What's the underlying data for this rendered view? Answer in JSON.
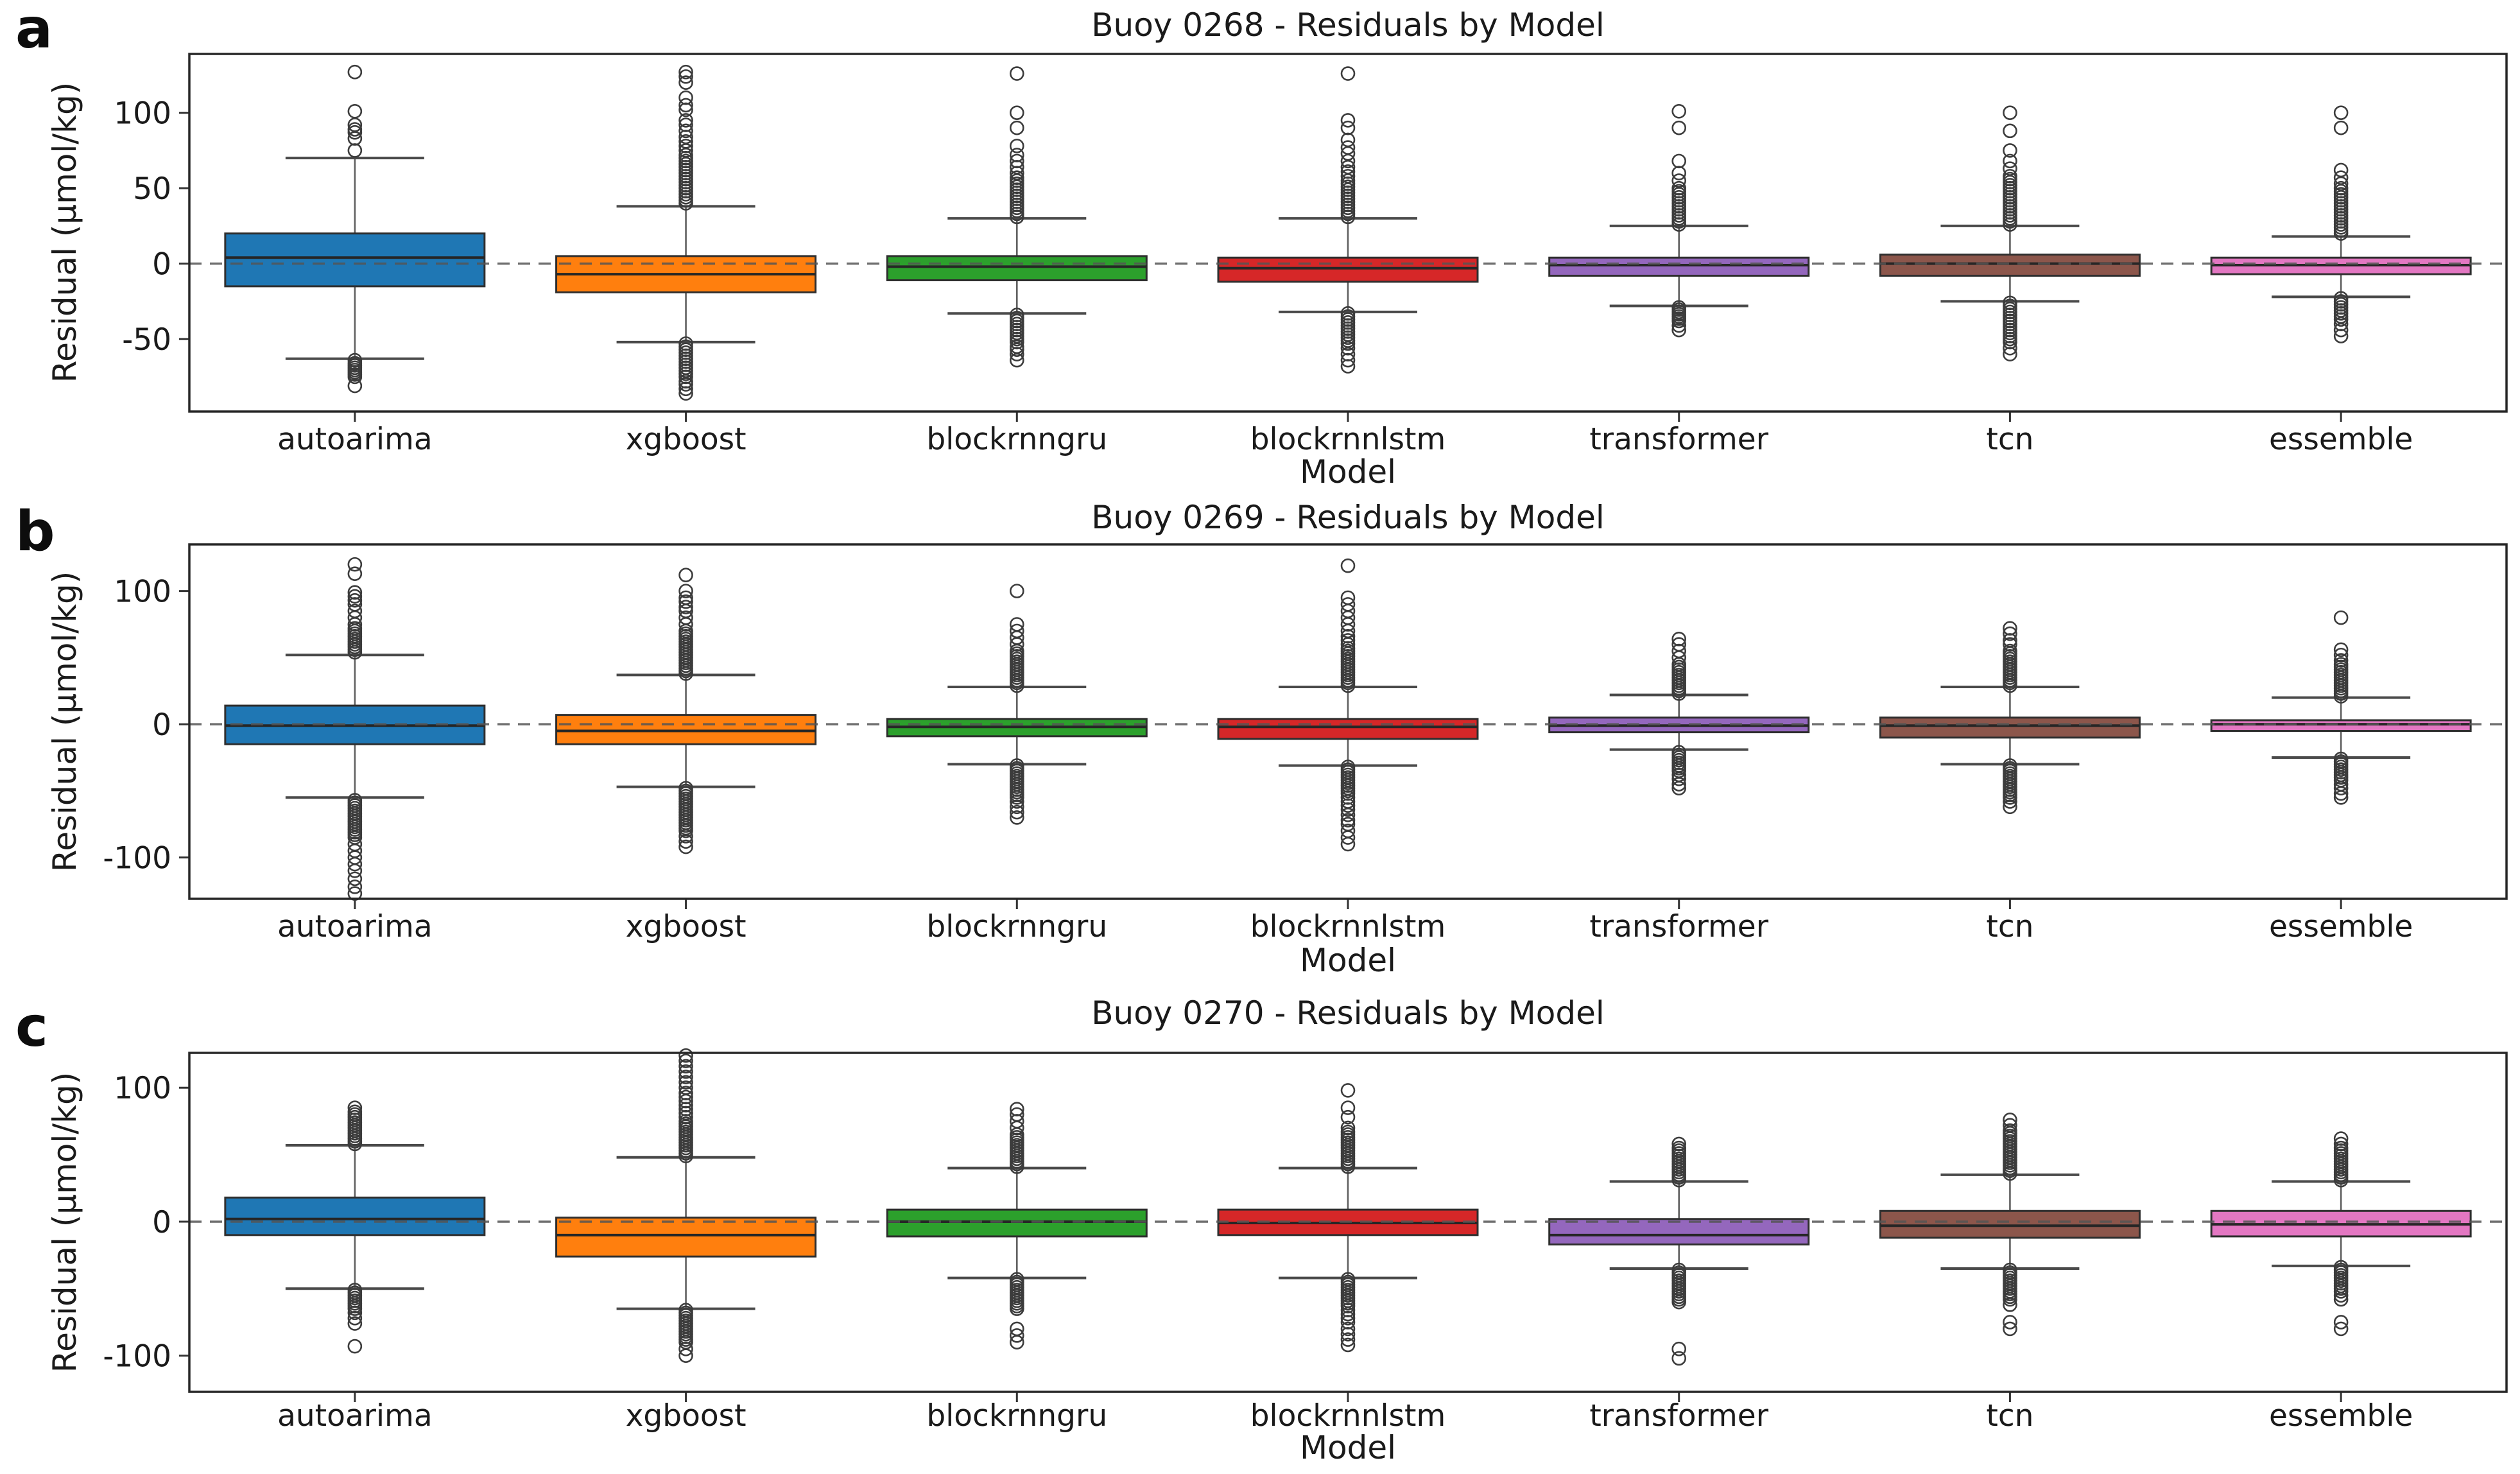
{
  "figure": {
    "background": "#ffffff"
  },
  "chart_data": [
    {
      "type": "box",
      "panel_label": "a",
      "title": "Buoy 0268 - Residuals by Model",
      "xlabel": "Model",
      "ylabel": "Residual (μmol/kg)",
      "yticks": [
        100,
        50,
        0,
        -50
      ],
      "ylim": [
        -98,
        139
      ],
      "zero_line": 0,
      "grid": false,
      "legend": "none",
      "categories": [
        "autoarima",
        "xgboost",
        "blockrnngru",
        "blockrnnlstm",
        "transformer",
        "tcn",
        "essemble"
      ],
      "series": [
        {
          "model": "autoarima",
          "color": "#1f77b4",
          "whisker_low": -63,
          "q1": -15,
          "median": 4,
          "q3": 20,
          "whisker_high": 70,
          "outliers_high": [
            75,
            83,
            87,
            89,
            92,
            101,
            127
          ],
          "outliers_low": [
            -64,
            -66,
            -67.5,
            -69,
            -70.5,
            -72,
            -73.5,
            -75,
            -81
          ]
        },
        {
          "model": "xgboost",
          "color": "#ff7f0e",
          "whisker_low": -52,
          "q1": -19,
          "median": -7,
          "q3": 5,
          "whisker_high": 38,
          "outliers_high": [
            40,
            42,
            44,
            46,
            48,
            50,
            52,
            54,
            56,
            58,
            60,
            62,
            64,
            66,
            68,
            70,
            72,
            75,
            78,
            81,
            84,
            88,
            92,
            95,
            102,
            105,
            110,
            120,
            124,
            127
          ],
          "outliers_low": [
            -53,
            -55,
            -57,
            -59,
            -61,
            -63,
            -65,
            -67,
            -69,
            -71,
            -73,
            -75,
            -78,
            -80,
            -83,
            -86
          ]
        },
        {
          "model": "blockrnngru",
          "color": "#2ca02c",
          "whisker_low": -33,
          "q1": -11,
          "median": -2,
          "q3": 5,
          "whisker_high": 30,
          "outliers_high": [
            31,
            33,
            35,
            37,
            39,
            41,
            43,
            45,
            47,
            49,
            51,
            53,
            55,
            57,
            60,
            64,
            68,
            72,
            78,
            90,
            100,
            126
          ],
          "outliers_low": [
            -34,
            -36,
            -38,
            -40,
            -42,
            -44,
            -46,
            -48,
            -50,
            -52,
            -55,
            -57,
            -60,
            -64
          ]
        },
        {
          "model": "blockrnnlstm",
          "color": "#d62728",
          "whisker_low": -32,
          "q1": -12,
          "median": -3,
          "q3": 4,
          "whisker_high": 30,
          "outliers_high": [
            31,
            33,
            35,
            37,
            39,
            41,
            43,
            45,
            47,
            49,
            51,
            53,
            55,
            58,
            61,
            64,
            68,
            73,
            77,
            82,
            90,
            95,
            126
          ],
          "outliers_low": [
            -33,
            -35,
            -37,
            -39,
            -41,
            -43,
            -45,
            -47,
            -49,
            -51,
            -53,
            -56,
            -60,
            -64,
            -68
          ]
        },
        {
          "model": "transformer",
          "color": "#9467bd",
          "whisker_low": -28,
          "q1": -8,
          "median": -1,
          "q3": 4,
          "whisker_high": 25,
          "outliers_high": [
            26,
            28,
            30,
            32,
            34,
            36,
            38,
            40,
            42,
            44,
            46,
            48,
            50,
            55,
            60,
            68,
            90,
            101
          ],
          "outliers_low": [
            -29,
            -30.5,
            -32,
            -33.5,
            -35,
            -36.5,
            -38,
            -41,
            -44
          ]
        },
        {
          "model": "tcn",
          "color": "#8c564b",
          "whisker_low": -25,
          "q1": -8,
          "median": 0,
          "q3": 6,
          "whisker_high": 25,
          "outliers_high": [
            26,
            28,
            30,
            32,
            34,
            36,
            38,
            40,
            42,
            44,
            46,
            48,
            50,
            52,
            54,
            56,
            58,
            63,
            68,
            75,
            88,
            100
          ],
          "outliers_low": [
            -26,
            -28,
            -30,
            -32,
            -34,
            -36,
            -38,
            -40,
            -42,
            -44,
            -46,
            -48,
            -50,
            -52,
            -56,
            -60
          ]
        },
        {
          "model": "essemble",
          "color": "#e377c2",
          "whisker_low": -22,
          "q1": -7,
          "median": -1,
          "q3": 4,
          "whisker_high": 18,
          "outliers_high": [
            20,
            22,
            24,
            26,
            28,
            30,
            32,
            34,
            36,
            38,
            40,
            42,
            44,
            46,
            48,
            50,
            53,
            57,
            62,
            90,
            100
          ],
          "outliers_low": [
            -23,
            -25,
            -27,
            -29,
            -31,
            -33,
            -35,
            -37,
            -40,
            -44,
            -48
          ]
        }
      ]
    },
    {
      "type": "box",
      "panel_label": "b",
      "title": "Buoy 0269 - Residuals by Model",
      "xlabel": "Model",
      "ylabel": "Residual (μmol/kg)",
      "yticks": [
        100,
        0,
        -100
      ],
      "ylim": [
        -131,
        135
      ],
      "zero_line": 0,
      "grid": false,
      "legend": "none",
      "categories": [
        "autoarima",
        "xgboost",
        "blockrnngru",
        "blockrnnlstm",
        "transformer",
        "tcn",
        "essemble"
      ],
      "series": [
        {
          "model": "autoarima",
          "color": "#1f77b4",
          "whisker_low": -55,
          "q1": -15,
          "median": -1,
          "q3": 14,
          "whisker_high": 52,
          "outliers_high": [
            54,
            56,
            58,
            60,
            62,
            64,
            66,
            68,
            70,
            72,
            75,
            80,
            85,
            90,
            93,
            96,
            99,
            113,
            120
          ],
          "outliers_low": [
            -57,
            -59,
            -61,
            -63,
            -65,
            -67,
            -69,
            -71,
            -73,
            -75,
            -77,
            -79,
            -81,
            -83,
            -85,
            -90,
            -95,
            -100,
            -105,
            -110,
            -116,
            -122,
            -127
          ]
        },
        {
          "model": "xgboost",
          "color": "#ff7f0e",
          "whisker_low": -47,
          "q1": -15,
          "median": -5,
          "q3": 7,
          "whisker_high": 37,
          "outliers_high": [
            38,
            40,
            42,
            44,
            46,
            48,
            50,
            52,
            54,
            56,
            58,
            60,
            62,
            64,
            66,
            68,
            70,
            75,
            80,
            85,
            88,
            92,
            95,
            100,
            112
          ],
          "outliers_low": [
            -48,
            -50,
            -52,
            -54,
            -56,
            -58,
            -60,
            -62,
            -64,
            -66,
            -68,
            -70,
            -72,
            -74,
            -76,
            -78,
            -80,
            -84,
            -88,
            -92
          ]
        },
        {
          "model": "blockrnngru",
          "color": "#2ca02c",
          "whisker_low": -30,
          "q1": -9,
          "median": -2,
          "q3": 4,
          "whisker_high": 28,
          "outliers_high": [
            29,
            31,
            33,
            35,
            37,
            39,
            41,
            43,
            45,
            47,
            49,
            51,
            53,
            55,
            60,
            65,
            70,
            75,
            100
          ],
          "outliers_low": [
            -31,
            -33,
            -35,
            -37,
            -39,
            -41,
            -43,
            -45,
            -47,
            -49,
            -51,
            -53,
            -55,
            -58,
            -62,
            -66,
            -70
          ]
        },
        {
          "model": "blockrnnlstm",
          "color": "#d62728",
          "whisker_low": -31,
          "q1": -11,
          "median": -2,
          "q3": 4,
          "whisker_high": 28,
          "outliers_high": [
            29,
            31,
            33,
            35,
            37,
            39,
            41,
            43,
            45,
            47,
            49,
            51,
            53,
            55,
            57,
            60,
            63,
            66,
            70,
            75,
            80,
            85,
            90,
            95,
            119
          ],
          "outliers_low": [
            -32,
            -34,
            -36,
            -38,
            -40,
            -42,
            -44,
            -46,
            -48,
            -50,
            -52,
            -55,
            -58,
            -61,
            -64,
            -68,
            -72,
            -75,
            -80,
            -85,
            -90
          ]
        },
        {
          "model": "transformer",
          "color": "#9467bd",
          "whisker_low": -19,
          "q1": -6,
          "median": -1,
          "q3": 5,
          "whisker_high": 22,
          "outliers_high": [
            23,
            25,
            27,
            29,
            31,
            33,
            35,
            37,
            39,
            41,
            43,
            45,
            50,
            55,
            60,
            64
          ],
          "outliers_low": [
            -21,
            -23,
            -25,
            -27,
            -29,
            -31,
            -33,
            -35,
            -38,
            -41,
            -45,
            -48
          ]
        },
        {
          "model": "tcn",
          "color": "#8c564b",
          "whisker_low": -30,
          "q1": -10,
          "median": -1,
          "q3": 5,
          "whisker_high": 28,
          "outliers_high": [
            29,
            31,
            33,
            35,
            37,
            39,
            41,
            43,
            45,
            47,
            49,
            51,
            53,
            55,
            60,
            63,
            68,
            72
          ],
          "outliers_low": [
            -31,
            -33,
            -35,
            -37,
            -39,
            -41,
            -43,
            -45,
            -47,
            -49,
            -51,
            -53,
            -55,
            -58,
            -62
          ]
        },
        {
          "model": "essemble",
          "color": "#e377c2",
          "whisker_low": -25,
          "q1": -5,
          "median": 0,
          "q3": 3,
          "whisker_high": 20,
          "outliers_high": [
            21,
            23,
            25,
            27,
            29,
            31,
            33,
            35,
            37,
            39,
            41,
            43,
            45,
            48,
            52,
            56,
            80
          ],
          "outliers_low": [
            -26,
            -28,
            -30,
            -32,
            -34,
            -36,
            -38,
            -40,
            -42,
            -45,
            -48,
            -52,
            -55
          ]
        }
      ]
    },
    {
      "type": "box",
      "panel_label": "c",
      "title": "Buoy 0270 - Residuals by Model",
      "xlabel": "Model",
      "ylabel": "Residual (μmol/kg)",
      "yticks": [
        100,
        0,
        -100
      ],
      "ylim": [
        -127,
        126
      ],
      "zero_line": 0,
      "grid": false,
      "legend": "none",
      "categories": [
        "autoarima",
        "xgboost",
        "blockrnngru",
        "blockrnnlstm",
        "transformer",
        "tcn",
        "essemble"
      ],
      "series": [
        {
          "model": "autoarima",
          "color": "#1f77b4",
          "whisker_low": -50,
          "q1": -10,
          "median": 2,
          "q3": 18,
          "whisker_high": 57,
          "outliers_high": [
            58,
            60,
            62,
            64,
            66,
            68,
            70,
            72,
            74,
            76,
            78,
            80,
            82,
            85
          ],
          "outliers_low": [
            -51,
            -53,
            -55,
            -57,
            -59,
            -61,
            -63,
            -65,
            -68,
            -72,
            -76,
            -93
          ]
        },
        {
          "model": "xgboost",
          "color": "#ff7f0e",
          "whisker_low": -65,
          "q1": -26,
          "median": -10,
          "q3": 3,
          "whisker_high": 48,
          "outliers_high": [
            49,
            51,
            53,
            55,
            57,
            59,
            61,
            63,
            65,
            67,
            69,
            71,
            73,
            75,
            78,
            81,
            84,
            87,
            90,
            93,
            96,
            100,
            104,
            108,
            112,
            116,
            120,
            124
          ],
          "outliers_low": [
            -66,
            -68,
            -70,
            -72,
            -74,
            -76,
            -78,
            -80,
            -82,
            -84,
            -86,
            -88,
            -90,
            -95,
            -100
          ]
        },
        {
          "model": "blockrnngru",
          "color": "#2ca02c",
          "whisker_low": -42,
          "q1": -11,
          "median": 0,
          "q3": 9,
          "whisker_high": 40,
          "outliers_high": [
            41,
            43,
            45,
            47,
            49,
            51,
            53,
            55,
            57,
            59,
            61,
            63,
            65,
            70,
            75,
            80,
            84
          ],
          "outliers_low": [
            -43,
            -45,
            -47,
            -49,
            -51,
            -53,
            -55,
            -57,
            -59,
            -61,
            -63,
            -65,
            -80,
            -85,
            -90
          ]
        },
        {
          "model": "blockrnnlstm",
          "color": "#d62728",
          "whisker_low": -42,
          "q1": -10,
          "median": -1,
          "q3": 9,
          "whisker_high": 40,
          "outliers_high": [
            41,
            43,
            45,
            47,
            49,
            51,
            53,
            55,
            57,
            59,
            61,
            63,
            65,
            67,
            70,
            78,
            85,
            98
          ],
          "outliers_low": [
            -43,
            -45,
            -47,
            -49,
            -51,
            -53,
            -55,
            -57,
            -59,
            -61,
            -63,
            -66,
            -69,
            -72,
            -75,
            -80,
            -84,
            -88,
            -92
          ]
        },
        {
          "model": "transformer",
          "color": "#9467bd",
          "whisker_low": -35,
          "q1": -17,
          "median": -10,
          "q3": 2,
          "whisker_high": 30,
          "outliers_high": [
            31,
            33,
            35,
            37,
            39,
            41,
            43,
            45,
            47,
            49,
            51,
            53,
            55,
            58
          ],
          "outliers_low": [
            -36,
            -38,
            -40,
            -42,
            -44,
            -46,
            -48,
            -50,
            -52,
            -54,
            -56,
            -58,
            -60,
            -95,
            -102
          ]
        },
        {
          "model": "tcn",
          "color": "#8c564b",
          "whisker_low": -35,
          "q1": -12,
          "median": -3,
          "q3": 8,
          "whisker_high": 35,
          "outliers_high": [
            36,
            38,
            40,
            42,
            44,
            46,
            48,
            50,
            52,
            54,
            56,
            58,
            60,
            62,
            64,
            66,
            68,
            72,
            76
          ],
          "outliers_low": [
            -36,
            -38,
            -40,
            -42,
            -44,
            -46,
            -48,
            -50,
            -52,
            -54,
            -56,
            -58,
            -62,
            -75,
            -80
          ]
        },
        {
          "model": "essemble",
          "color": "#e377c2",
          "whisker_low": -33,
          "q1": -11,
          "median": -2,
          "q3": 8,
          "whisker_high": 30,
          "outliers_high": [
            31,
            33,
            35,
            37,
            39,
            41,
            43,
            45,
            47,
            49,
            51,
            53,
            55,
            58,
            62
          ],
          "outliers_low": [
            -34,
            -36,
            -38,
            -40,
            -42,
            -44,
            -46,
            -48,
            -50,
            -52,
            -55,
            -58,
            -75,
            -80
          ]
        }
      ]
    }
  ]
}
